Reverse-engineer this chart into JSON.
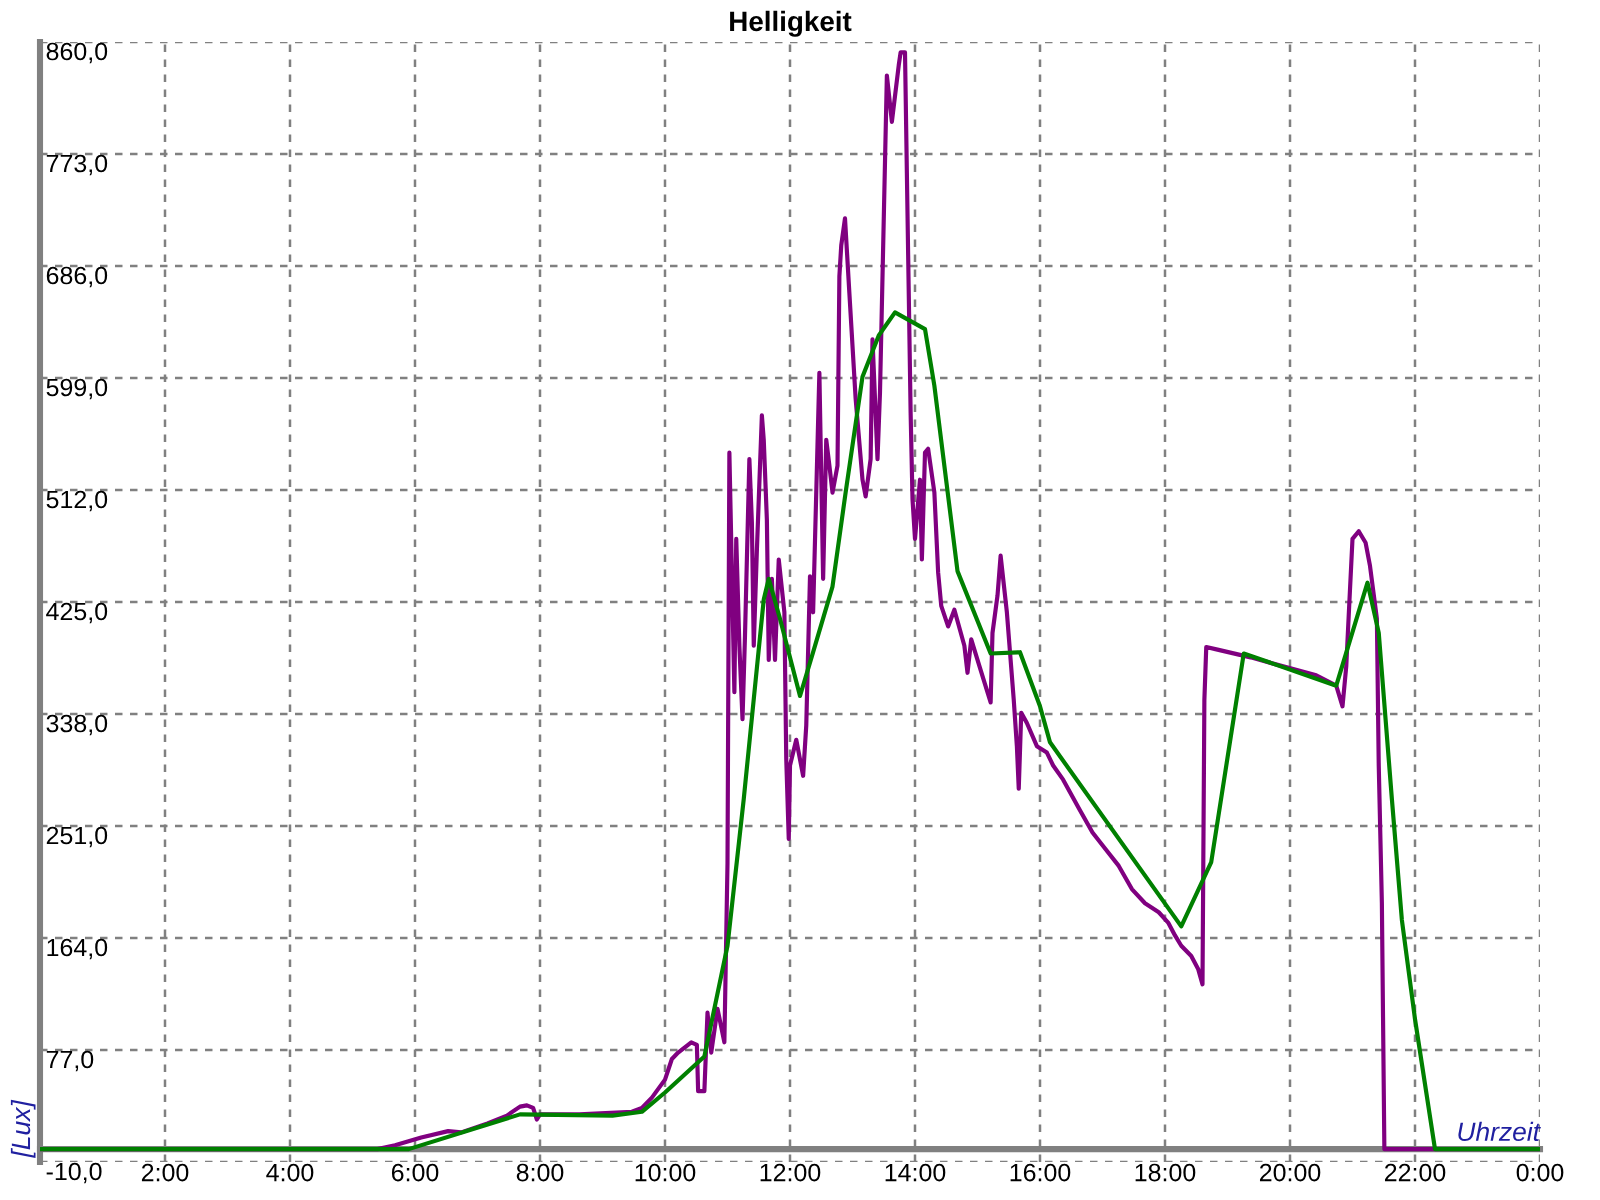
{
  "chart_data": {
    "type": "line",
    "title": "Helligkeit",
    "xlabel": "Uhrzeit",
    "ylabel": "[Lux]",
    "xlim": [
      0,
      24
    ],
    "xticks": [
      {
        "value": 2,
        "label": "2:00"
      },
      {
        "value": 4,
        "label": "4:00"
      },
      {
        "value": 6,
        "label": "6:00"
      },
      {
        "value": 8,
        "label": "8:00"
      },
      {
        "value": 10,
        "label": "10:00"
      },
      {
        "value": 12,
        "label": "12:00"
      },
      {
        "value": 14,
        "label": "14:00"
      },
      {
        "value": 16,
        "label": "16:00"
      },
      {
        "value": 18,
        "label": "18:00"
      },
      {
        "value": 20,
        "label": "20:00"
      },
      {
        "value": 22,
        "label": "22:00"
      },
      {
        "value": 24,
        "label": "0:00"
      }
    ],
    "ylim": [
      -10,
      860
    ],
    "yticks": [
      {
        "value": -10,
        "label": "-10,0"
      },
      {
        "value": 77,
        "label": "77,0"
      },
      {
        "value": 164,
        "label": "164,0"
      },
      {
        "value": 251,
        "label": "251,0"
      },
      {
        "value": 338,
        "label": "338,0"
      },
      {
        "value": 425,
        "label": "425,0"
      },
      {
        "value": 512,
        "label": "512,0"
      },
      {
        "value": 599,
        "label": "599,0"
      },
      {
        "value": 686,
        "label": "686,0"
      },
      {
        "value": 773,
        "label": "773,0"
      },
      {
        "value": 860,
        "label": "860,0"
      }
    ],
    "grid": true,
    "series": [
      {
        "color": "#800080",
        "x": [
          0,
          5.4,
          5.68,
          6.1,
          6.53,
          6.74,
          7.16,
          7.47,
          7.68,
          7.79,
          7.89,
          7.95,
          8.0,
          8.63,
          9.47,
          9.63,
          9.79,
          10.0,
          10.11,
          10.21,
          10.42,
          10.51,
          10.53,
          10.63,
          10.68,
          10.74,
          10.84,
          10.95,
          11.0,
          11.03,
          11.11,
          11.14,
          11.19,
          11.24,
          11.28,
          11.35,
          11.39,
          11.42,
          11.47,
          11.55,
          11.58,
          11.63,
          11.66,
          11.71,
          11.76,
          11.82,
          11.91,
          11.94,
          11.98,
          12.0,
          12.1,
          12.21,
          12.26,
          12.32,
          12.37,
          12.47,
          12.53,
          12.58,
          12.63,
          12.68,
          12.76,
          12.79,
          12.82,
          12.88,
          12.95,
          13.0,
          13.05,
          13.16,
          13.21,
          13.29,
          13.32,
          13.4,
          13.44,
          13.55,
          13.63,
          13.74,
          13.77,
          13.84,
          13.87,
          13.93,
          13.96,
          14.0,
          14.08,
          14.11,
          14.16,
          14.21,
          14.31,
          14.37,
          14.42,
          14.53,
          14.63,
          14.79,
          14.84,
          14.9,
          15.0,
          15.21,
          15.24,
          15.32,
          15.37,
          15.47,
          15.58,
          15.63,
          15.66,
          15.7,
          15.79,
          15.95,
          16.11,
          16.21,
          16.37,
          16.63,
          16.84,
          17.05,
          17.26,
          17.47,
          17.68,
          17.9,
          18.05,
          18.16,
          18.26,
          18.42,
          18.53,
          18.6,
          18.63,
          18.66,
          18.84,
          19.37,
          19.89,
          20.42,
          20.74,
          20.84,
          20.9,
          20.95,
          21.0,
          21.1,
          21.21,
          21.28,
          21.35,
          21.39,
          21.42,
          21.47,
          21.51,
          24
        ],
        "values": [
          0,
          0,
          3,
          9,
          14,
          13,
          20,
          26,
          33,
          34,
          32,
          23,
          27,
          27,
          29,
          32,
          40,
          54,
          70,
          75,
          83,
          81,
          45,
          45,
          106,
          75,
          109,
          83,
          222,
          541,
          355,
          474,
          391,
          334,
          399,
          536,
          487,
          391,
          465,
          570,
          551,
          489,
          380,
          443,
          380,
          458,
          417,
          303,
          241,
          298,
          318,
          290,
          329,
          445,
          417,
          603,
          443,
          551,
          531,
          510,
          531,
          678,
          702,
          723,
          665,
          624,
          583,
          520,
          507,
          536,
          629,
          536,
          588,
          834,
          798,
          842,
          852,
          852,
          758,
          572,
          505,
          474,
          520,
          458,
          541,
          544,
          510,
          448,
          422,
          406,
          419,
          391,
          370,
          396,
          380,
          347,
          401,
          430,
          461,
          417,
          349,
          313,
          280,
          339,
          331,
          313,
          308,
          298,
          287,
          264,
          246,
          233,
          220,
          202,
          191,
          184,
          176,
          166,
          158,
          150,
          140,
          128,
          349,
          390,
          388,
          382,
          375,
          368,
          360,
          344,
          375,
          425,
          474,
          480,
          471,
          453,
          427,
          412,
          298,
          191,
          0,
          0
        ]
      },
      {
        "color": "#008000",
        "x": [
          0,
          5.9,
          7.68,
          9.16,
          9.63,
          10.0,
          10.63,
          11.0,
          11.26,
          11.58,
          11.66,
          11.84,
          12.16,
          12.37,
          12.68,
          12.89,
          13.16,
          13.42,
          13.68,
          14.16,
          14.31,
          14.68,
          15.21,
          15.68,
          16.0,
          16.16,
          18.26,
          18.74,
          19.26,
          20.74,
          21.24,
          21.42,
          21.63,
          21.79,
          22.0,
          22.32,
          24
        ],
        "values": [
          0,
          0,
          27,
          26,
          29,
          44,
          72,
          158,
          272,
          427,
          443,
          412,
          352,
          386,
          437,
          510,
          600,
          632,
          650,
          637,
          593,
          449,
          385,
          386,
          344,
          316,
          173,
          223,
          385,
          360,
          440,
          401,
          272,
          178,
          101,
          0,
          0
        ]
      }
    ]
  }
}
